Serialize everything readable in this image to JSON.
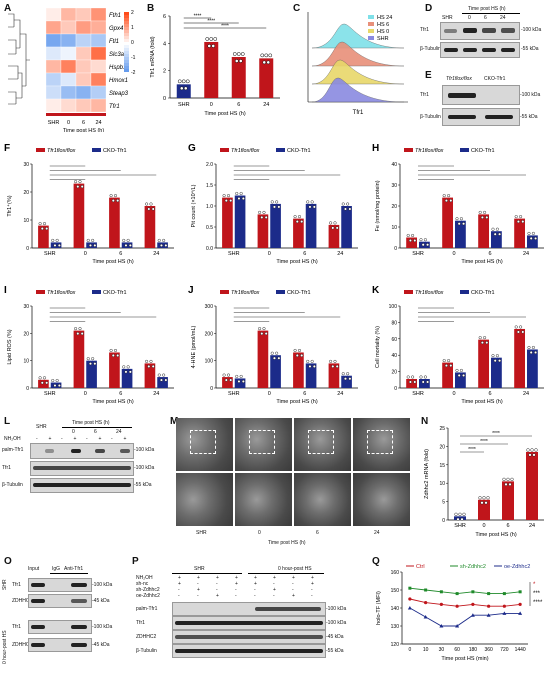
{
  "panelA": {
    "letter": "A",
    "genes": [
      "Fth1",
      "Gpx4",
      "Ftl1",
      "Slc3a2",
      "Hspb1",
      "Hmox1",
      "Steap3",
      "Tfr1"
    ],
    "xlabels": [
      "SHR",
      "0",
      "6",
      "24"
    ],
    "xtitle": "Time post HS (h)",
    "scale": [
      "2",
      "1",
      "0",
      "-1",
      "-2"
    ],
    "matrix": [
      [
        0.2,
        0.8,
        0.6,
        1.2
      ],
      [
        1.0,
        0.6,
        1.1,
        0.9
      ],
      [
        -1.6,
        -1.4,
        -0.8,
        -1.0
      ],
      [
        -0.4,
        -0.2,
        0.6,
        1.6
      ],
      [
        0.8,
        1.4,
        0.6,
        0.4
      ],
      [
        -0.8,
        -0.4,
        0.6,
        1.4
      ],
      [
        -0.6,
        -1.2,
        -1.4,
        -0.9
      ],
      [
        0.2,
        0.4,
        0.6,
        0.8
      ]
    ]
  },
  "panelB": {
    "letter": "B",
    "ylabel": "Tfr1 mRNA (fold)",
    "xtitle": "Time post HS (h)",
    "categories": [
      "SHR",
      "0",
      "6",
      "24"
    ],
    "values": [
      1.0,
      4.1,
      3.0,
      2.9
    ],
    "yticks": [
      "0",
      "2",
      "4",
      "6"
    ],
    "sig": "****"
  },
  "panelC": {
    "letter": "C",
    "legend": [
      "HS 24",
      "HS 6",
      "HS 0",
      "SHR"
    ],
    "colors": [
      "#7fe0e8",
      "#e8907a",
      "#e8d86a",
      "#8a8ae0"
    ],
    "xlabel": "Tfr1"
  },
  "panelD": {
    "letter": "D",
    "title": "Time post HS (h)",
    "lanes": [
      "SHR",
      "0",
      "6",
      "24"
    ],
    "rows": [
      "Tfr1",
      "β-Tubulin"
    ],
    "kda": [
      "-100 kDa",
      "-55 kDa"
    ]
  },
  "panelE": {
    "letter": "E",
    "lanes": [
      "Tfr1flox/flox",
      "CKO-Tfr1"
    ],
    "rows": [
      "Tfr1",
      "β-Tubulin"
    ],
    "kda": [
      "-100 kDa",
      "-55 kDa"
    ]
  },
  "legendBar": {
    "flox": "Tfr1flox/flox",
    "cko": "CKO-Tfr1",
    "red": "#c0151b",
    "blue": "#1c2b8a"
  },
  "bargroups": {
    "F": {
      "letter": "F",
      "ylabel": "Tfr1⁺(%)",
      "xtitle": "Time post HS (h)",
      "cats": [
        "SHR",
        "0",
        "6",
        "24"
      ],
      "red": [
        8,
        23,
        18,
        15
      ],
      "blue": [
        2,
        2,
        2,
        2
      ],
      "ymax": 30,
      "yticks": [
        "0",
        "10",
        "20",
        "30"
      ]
    },
    "G": {
      "letter": "G",
      "ylabel": "Pit count (×10⁴/L)",
      "xtitle": "Time post HS (h)",
      "cats": [
        "SHR",
        "0",
        "6",
        "24"
      ],
      "red": [
        1.2,
        0.8,
        0.7,
        0.55
      ],
      "blue": [
        1.25,
        1.05,
        1.05,
        1.0
      ],
      "ymax": 2.0,
      "yticks": [
        "0.0",
        "0.5",
        "1.0",
        "1.5",
        "2.0"
      ]
    },
    "H": {
      "letter": "H",
      "ylabel": "Fe (nmol/mg protein)",
      "xtitle": "Time post HS (h)",
      "cats": [
        "SHR",
        "0",
        "6",
        "24"
      ],
      "red": [
        5,
        24,
        16,
        14
      ],
      "blue": [
        3,
        13,
        8,
        6
      ],
      "ymax": 40,
      "yticks": [
        "0",
        "10",
        "20",
        "30",
        "40"
      ]
    },
    "I": {
      "letter": "I",
      "ylabel": "Lipid ROS (%)",
      "xtitle": "Time post HS (h)",
      "cats": [
        "SHR",
        "0",
        "6",
        "24"
      ],
      "red": [
        3,
        21,
        13,
        9
      ],
      "blue": [
        2,
        10,
        7,
        4
      ],
      "ymax": 30,
      "yticks": [
        "0",
        "10",
        "20",
        "30"
      ]
    },
    "J": {
      "letter": "J",
      "ylabel": "4-HNE (pmol/mL)",
      "xtitle": "Time post HS (h)",
      "cats": [
        "SHR",
        "0",
        "6",
        "24"
      ],
      "red": [
        40,
        210,
        130,
        90
      ],
      "blue": [
        35,
        120,
        90,
        45
      ],
      "ymax": 300,
      "yticks": [
        "0",
        "100",
        "200",
        "300"
      ]
    },
    "K": {
      "letter": "K",
      "ylabel": "Cell mortality (%)",
      "xtitle": "Time post HS (h)",
      "cats": [
        "SHR",
        "0",
        "6",
        "24"
      ],
      "red": [
        11,
        31,
        59,
        72
      ],
      "blue": [
        11,
        19,
        37,
        47
      ],
      "ymax": 100,
      "yticks": [
        "0",
        "20",
        "40",
        "60",
        "80",
        "100"
      ]
    }
  },
  "panelL": {
    "letter": "L",
    "header": [
      "SHR",
      "Time post HS (h)",
      "0",
      "6",
      "24"
    ],
    "nh2oh": "NH₂OH",
    "signs": [
      "-",
      "+",
      "-",
      "+",
      "-",
      "+",
      "-",
      "+"
    ],
    "rows": [
      "palm-Tfr1",
      "Tfr1",
      "β-Tubulin"
    ],
    "kda": [
      "-100 kDa",
      "-100 kDa",
      "-55 kDa"
    ]
  },
  "panelM": {
    "letter": "M",
    "labels": [
      "SHR",
      "0",
      "6",
      "24"
    ],
    "xtitle": "Time post HS (h)"
  },
  "panelN": {
    "letter": "N",
    "ylabel": "Zdhhc2 mRNA (fold)",
    "xtitle": "Time post HS (h)",
    "categories": [
      "SHR",
      "0",
      "6",
      "24"
    ],
    "values": [
      1,
      5.5,
      10.5,
      18.5
    ],
    "yticks": [
      "0",
      "5",
      "10",
      "15",
      "20",
      "25"
    ],
    "sig": "****"
  },
  "panelO": {
    "letter": "O",
    "cols": [
      "Input",
      "IgG",
      "Anti-Tfr1"
    ],
    "groups": [
      "SHR",
      "0 hour-post HS"
    ],
    "rows": [
      "Tfr1",
      "ZDHHC2",
      "Tfr1",
      "ZDHHC2"
    ],
    "kda": [
      "-100 kDa",
      "-45 kDa",
      "-100 kDa",
      "-45 kDa"
    ],
    "ip": "IP"
  },
  "panelP": {
    "letter": "P",
    "groups": [
      "SHR",
      "0 hour-post HS"
    ],
    "rowlabels": [
      "NH₂OH",
      "sh-nc",
      "sh-Zdhhc2",
      "oe-Zdhhc2"
    ],
    "rows": [
      "palm-Tfr1",
      "Tfr1",
      "ZDHHC2",
      "β-Tubulin"
    ],
    "kda": [
      "-100 kDa",
      "-100 kDa",
      "-45 kDa",
      "-55 kDa"
    ]
  },
  "panelQ": {
    "letter": "Q",
    "legend": [
      "Ctrl",
      "sh-Zdhhc2",
      "oe-Zdhhc2"
    ],
    "colors": [
      "#c0151b",
      "#1f8a2a",
      "#1c2b8a"
    ],
    "ylabel": "holo-TF (MFI)",
    "xtitle": "Time post HS (min)",
    "x": [
      "0",
      "10",
      "30",
      "60",
      "180",
      "360",
      "720",
      "1440"
    ],
    "series": [
      [
        145,
        143,
        142,
        141,
        142,
        141,
        141,
        142
      ],
      [
        151,
        150,
        149,
        148,
        149,
        148,
        148,
        149
      ],
      [
        140,
        135,
        130,
        130,
        136,
        136,
        137,
        137
      ]
    ],
    "yticks": [
      "120",
      "130",
      "140",
      "150",
      "160"
    ],
    "sig": [
      "*",
      "***",
      "****"
    ]
  }
}
